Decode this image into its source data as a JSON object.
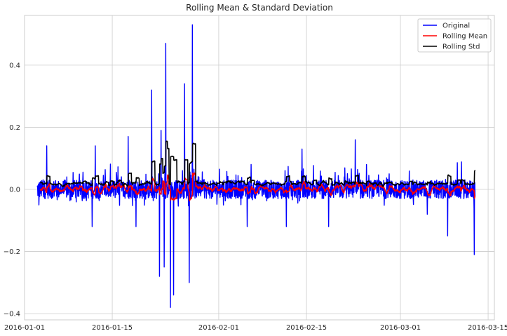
{
  "chart_data": {
    "type": "line",
    "title": "Rolling Mean & Standard Deviation",
    "xlabel": "",
    "ylabel": "",
    "x_axis_type": "date",
    "xlim": [
      "2016-01-01",
      "2016-03-16"
    ],
    "ylim": [
      -0.42,
      0.56
    ],
    "x_ticks": [
      "2016-01-01",
      "2016-01-15",
      "2016-02-01",
      "2016-02-15",
      "2016-03-01",
      "2016-03-15"
    ],
    "x_tick_labels": [
      "2016-01-01",
      "2016-01-15",
      "2016-02-01",
      "2016-02-15",
      "2016-03-01",
      "2016-03-15"
    ],
    "y_ticks": [
      -0.4,
      -0.2,
      0.0,
      0.2,
      0.4
    ],
    "y_tick_labels": [
      "−0.4",
      "−0.2",
      "0.0",
      "0.2",
      "0.4"
    ],
    "grid": true,
    "legend_position": "top-right",
    "data_start": "2016-01-03",
    "data_end": "2016-03-13",
    "series": [
      {
        "name": "Original",
        "color": "#0000ff",
        "style": "high-frequency noise around 0 (approx. range −0.05 to 0.08) with spikes",
        "spikes": [
          {
            "x": "2016-01-03",
            "y": -0.05
          },
          {
            "x": "2016-01-04",
            "y": 0.14
          },
          {
            "x": "2016-01-11",
            "y": -0.12
          },
          {
            "x": "2016-01-12",
            "y": 0.14
          },
          {
            "x": "2016-01-17",
            "y": 0.17
          },
          {
            "x": "2016-01-18",
            "y": -0.12
          },
          {
            "x": "2016-01-21",
            "y": 0.32
          },
          {
            "x": "2016-01-22",
            "y": -0.28
          },
          {
            "x": "2016-01-22",
            "y": 0.19
          },
          {
            "x": "2016-01-23",
            "y": -0.25
          },
          {
            "x": "2016-01-23",
            "y": 0.47
          },
          {
            "x": "2016-01-24",
            "y": -0.34
          },
          {
            "x": "2016-01-24",
            "y": -0.38
          },
          {
            "x": "2016-01-26",
            "y": 0.34
          },
          {
            "x": "2016-01-27",
            "y": 0.53
          },
          {
            "x": "2016-01-27",
            "y": -0.3
          },
          {
            "x": "2016-02-05",
            "y": -0.12
          },
          {
            "x": "2016-02-11",
            "y": -0.12
          },
          {
            "x": "2016-02-14",
            "y": 0.13
          },
          {
            "x": "2016-02-18",
            "y": -0.12
          },
          {
            "x": "2016-02-22",
            "y": 0.16
          },
          {
            "x": "2016-03-05",
            "y": -0.08
          },
          {
            "x": "2016-03-08",
            "y": -0.15
          },
          {
            "x": "2016-03-12",
            "y": -0.21
          }
        ]
      },
      {
        "name": "Rolling Mean",
        "color": "#ff0000",
        "style": "oscillates near 0, mostly within ±0.05"
      },
      {
        "name": "Rolling Std",
        "color": "#000000",
        "style": "positive, mostly 0.01–0.06, peaks near 0.18–0.2 around 2016-01-23 to 2016-01-27",
        "peaks": [
          {
            "x": "2016-01-23",
            "y": 0.17
          },
          {
            "x": "2016-01-24",
            "y": 0.15
          },
          {
            "x": "2016-01-26",
            "y": 0.15
          },
          {
            "x": "2016-01-27",
            "y": 0.2
          },
          {
            "x": "2016-03-13",
            "y": 0.11
          }
        ]
      }
    ]
  }
}
